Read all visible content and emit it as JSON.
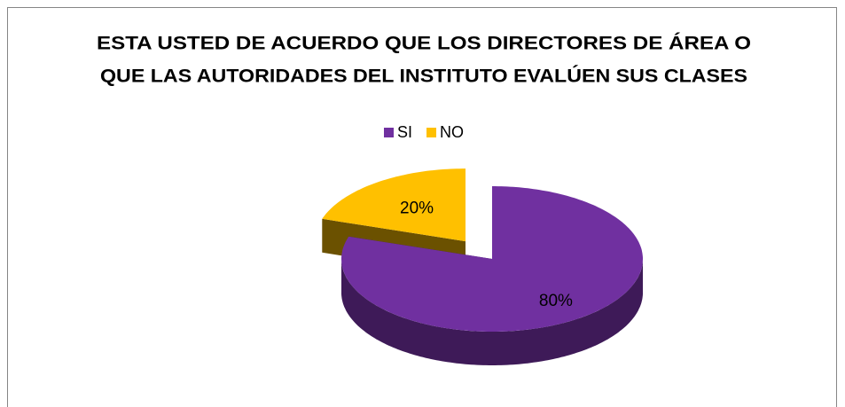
{
  "chart_data": {
    "type": "pie3d",
    "title": [
      "ESTA USTED DE ACUERDO QUE LOS DIRECTORES DE ÁREA O",
      "QUE LAS AUTORIDADES DEL INSTITUTO EVALÚEN SUS CLASES"
    ],
    "categories": [
      "SI",
      "NO"
    ],
    "values": [
      80,
      20
    ],
    "value_labels": [
      "80%",
      "20%"
    ],
    "colors": [
      "#7030a0",
      "#ffc000"
    ],
    "legend": "top"
  }
}
